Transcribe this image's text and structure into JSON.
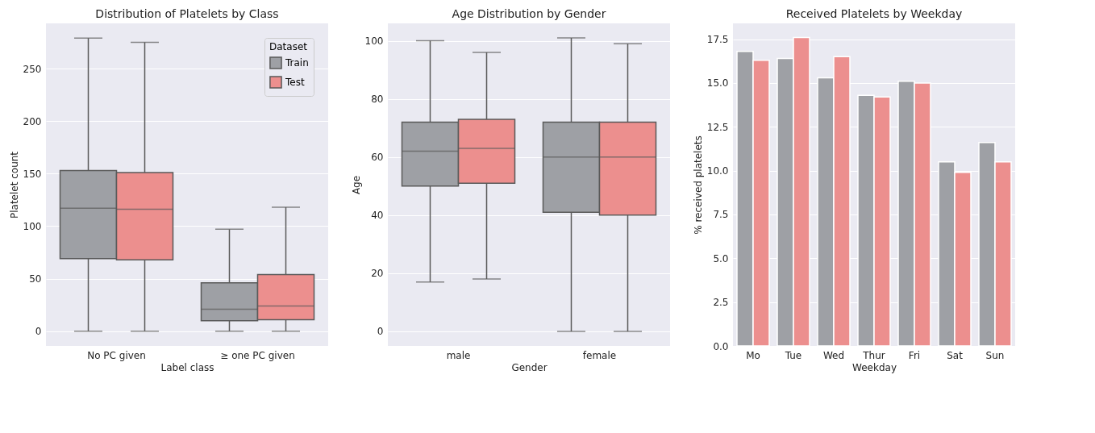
{
  "chart_data": [
    {
      "type": "box",
      "title": "Distribution of Platelets by Class",
      "xlabel": "Label class",
      "ylabel": "Platelet count",
      "categories": [
        "No PC given",
        "≥ one PC given"
      ],
      "series": [
        {
          "name": "Train",
          "color": "#9ea0a5",
          "boxes": [
            {
              "low": 0,
              "q1": 69,
              "median": 117,
              "q3": 153,
              "high": 279
            },
            {
              "low": 0,
              "q1": 10,
              "median": 21,
              "q3": 46,
              "high": 97
            }
          ]
        },
        {
          "name": "Test",
          "color": "#ec8f8e",
          "boxes": [
            {
              "low": 0,
              "q1": 68,
              "median": 116,
              "q3": 151,
              "high": 275
            },
            {
              "low": 0,
              "q1": 11,
              "median": 24,
              "q3": 54,
              "high": 118
            }
          ]
        }
      ],
      "ylim": [
        -14,
        293
      ],
      "yticks": [
        0,
        50,
        100,
        150,
        200,
        250
      ],
      "grid": "y",
      "legend": "top right",
      "legend_title": "Dataset"
    },
    {
      "type": "box",
      "title": "Age Distribution by Gender",
      "xlabel": "Gender",
      "ylabel": "Age",
      "categories": [
        "male",
        "female"
      ],
      "series": [
        {
          "color": "#9ea0a5",
          "boxes": [
            {
              "low": 17,
              "q1": 50,
              "median": 62,
              "q3": 72,
              "high": 100
            },
            {
              "low": 0,
              "q1": 41,
              "median": 60,
              "q3": 72,
              "high": 101
            }
          ]
        },
        {
          "color": "#ec8f8e",
          "boxes": [
            {
              "low": 18,
              "q1": 51,
              "median": 63,
              "q3": 73,
              "high": 96
            },
            {
              "low": 0,
              "q1": 40,
              "median": 60,
              "q3": 72,
              "high": 99
            }
          ]
        }
      ],
      "ylim": [
        -5,
        106
      ],
      "yticks": [
        0,
        20,
        40,
        60,
        80,
        100
      ],
      "grid": "y"
    },
    {
      "type": "bar",
      "title": "Received Platelets by Weekday",
      "xlabel": "Weekday",
      "ylabel": "% received platelets",
      "categories": [
        "Mo",
        "Tue",
        "Wed",
        "Thur",
        "Fri",
        "Sat",
        "Sun"
      ],
      "series": [
        {
          "color": "#9ea0a5",
          "values": [
            16.8,
            16.4,
            15.3,
            14.3,
            15.1,
            10.5,
            11.6
          ]
        },
        {
          "color": "#ec8f8e",
          "values": [
            16.3,
            17.6,
            16.5,
            14.2,
            15.0,
            9.9,
            10.5
          ]
        }
      ],
      "ylim": [
        0,
        18.4
      ],
      "yticks": [
        {
          "value": 0,
          "label": "0.0"
        },
        {
          "value": 2.5,
          "label": "2.5"
        },
        {
          "value": 5,
          "label": "5.0"
        },
        {
          "value": 7.5,
          "label": "7.5"
        },
        {
          "value": 10,
          "label": "10.0"
        },
        {
          "value": 12.5,
          "label": "12.5"
        },
        {
          "value": 15,
          "label": "15.0"
        },
        {
          "value": 17.5,
          "label": "17.5"
        }
      ],
      "grid": "y"
    }
  ]
}
